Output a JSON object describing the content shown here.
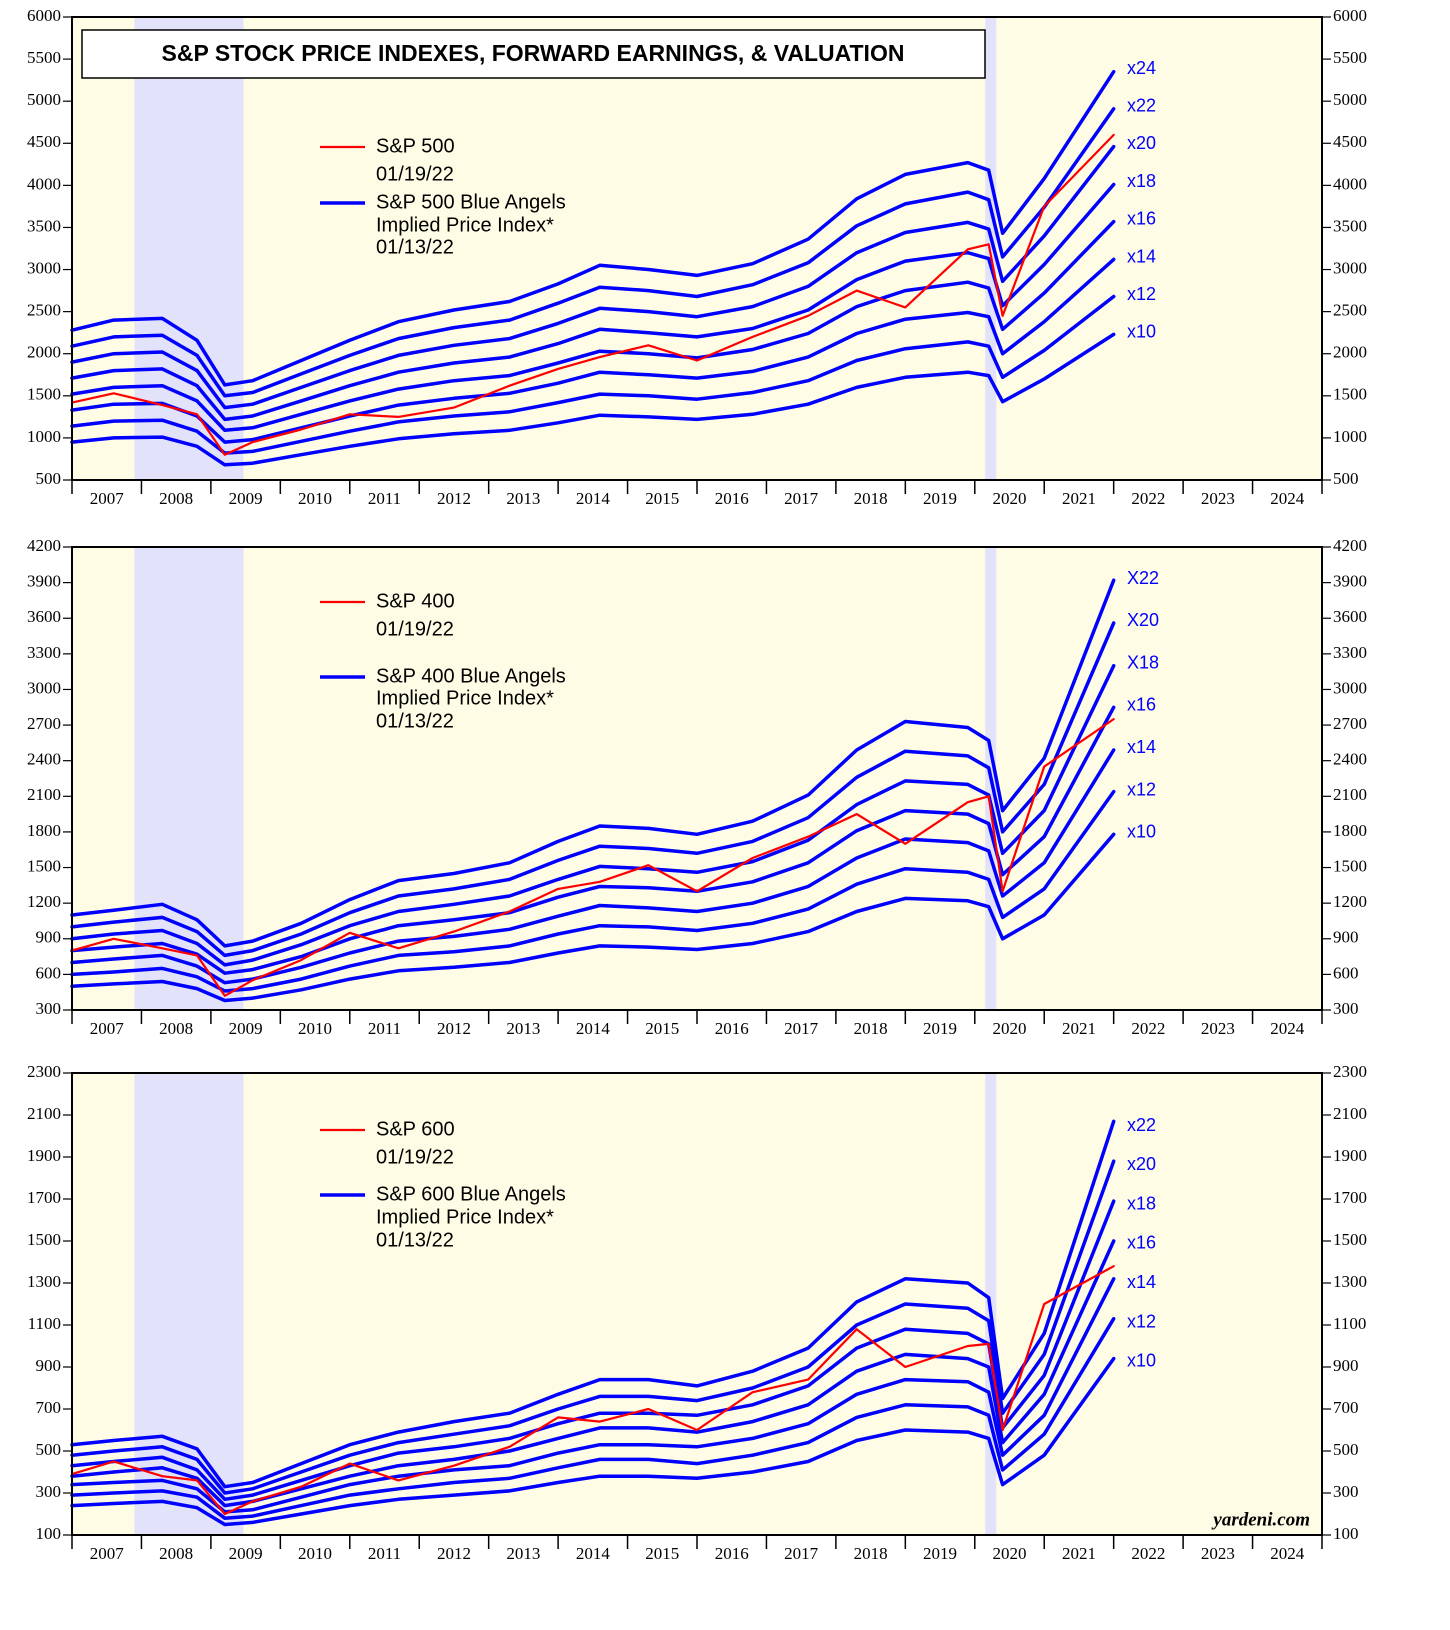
{
  "chart_data": [
    {
      "type": "line",
      "title": "S&P STOCK PRICE INDEXES, FORWARD EARNINGS, & VALUATION",
      "x": [
        2007.0,
        2007.6,
        2008.3,
        2008.8,
        2009.2,
        2009.6,
        2010.3,
        2011.0,
        2011.7,
        2012.5,
        2013.3,
        2014.0,
        2014.6,
        2015.3,
        2016.0,
        2016.8,
        2017.6,
        2018.3,
        2019.0,
        2019.9,
        2020.2,
        2020.4,
        2021.0,
        2022.0
      ],
      "series": [
        {
          "name": "x24",
          "color": "#0000ff",
          "values": [
            2280,
            2400,
            2420,
            2160,
            1630,
            1680,
            1920,
            2160,
            2380,
            2520,
            2620,
            2830,
            3050,
            3000,
            2930,
            3070,
            3360,
            3840,
            4130,
            4270,
            4180,
            3430,
            4080,
            5350
          ]
        },
        {
          "name": "x22",
          "color": "#0000ff",
          "values": [
            2090,
            2200,
            2220,
            1980,
            1500,
            1540,
            1760,
            1980,
            2180,
            2310,
            2400,
            2600,
            2790,
            2750,
            2680,
            2820,
            3080,
            3520,
            3780,
            3920,
            3830,
            3150,
            3740,
            4910
          ]
        },
        {
          "name": "x20",
          "color": "#0000ff",
          "values": [
            1900,
            2000,
            2020,
            1800,
            1360,
            1400,
            1600,
            1800,
            1980,
            2100,
            2180,
            2360,
            2540,
            2500,
            2440,
            2560,
            2800,
            3200,
            3440,
            3560,
            3480,
            2860,
            3400,
            4460
          ]
        },
        {
          "name": "x18",
          "color": "#0000ff",
          "values": [
            1710,
            1800,
            1820,
            1620,
            1220,
            1260,
            1440,
            1620,
            1780,
            1890,
            1960,
            2120,
            2290,
            2250,
            2200,
            2300,
            2520,
            2880,
            3100,
            3200,
            3130,
            2570,
            3060,
            4010
          ]
        },
        {
          "name": "x16",
          "color": "#0000ff",
          "values": [
            1520,
            1600,
            1620,
            1440,
            1090,
            1120,
            1280,
            1440,
            1580,
            1680,
            1740,
            1890,
            2030,
            2000,
            1950,
            2050,
            2240,
            2560,
            2750,
            2850,
            2780,
            2290,
            2720,
            3570
          ]
        },
        {
          "name": "x14",
          "color": "#0000ff",
          "values": [
            1330,
            1400,
            1410,
            1260,
            950,
            980,
            1120,
            1260,
            1390,
            1470,
            1530,
            1650,
            1780,
            1750,
            1710,
            1790,
            1960,
            2240,
            2410,
            2490,
            2440,
            2000,
            2380,
            3120
          ]
        },
        {
          "name": "x12",
          "color": "#0000ff",
          "values": [
            1140,
            1200,
            1210,
            1080,
            820,
            840,
            960,
            1080,
            1190,
            1260,
            1310,
            1420,
            1520,
            1500,
            1460,
            1540,
            1680,
            1920,
            2060,
            2140,
            2090,
            1720,
            2040,
            2680
          ]
        },
        {
          "name": "x10",
          "color": "#0000ff",
          "values": [
            950,
            1000,
            1010,
            900,
            680,
            700,
            800,
            900,
            990,
            1050,
            1090,
            1180,
            1270,
            1250,
            1220,
            1280,
            1400,
            1600,
            1720,
            1780,
            1740,
            1430,
            1700,
            2230
          ]
        },
        {
          "name": "S&P 500",
          "date": "01/19/22",
          "color": "#ff0000",
          "values": [
            1420,
            1530,
            1390,
            1280,
            800,
            950,
            1100,
            1280,
            1250,
            1360,
            1620,
            1820,
            1960,
            2100,
            1920,
            2200,
            2450,
            2750,
            2550,
            3240,
            3300,
            2450,
            3750,
            4600
          ]
        }
      ],
      "band_label": [
        "S&P 500 Blue Angels",
        "Implied Price Index*"
      ],
      "band_date": "01/13/22",
      "band_color": "#0000ff",
      "xlim": [
        2007,
        2025
      ],
      "xticks": [
        2007,
        2008,
        2009,
        2010,
        2011,
        2012,
        2013,
        2014,
        2015,
        2016,
        2017,
        2018,
        2019,
        2020,
        2021,
        2022,
        2023,
        2024,
        2025
      ],
      "year_labels": [
        "2007",
        "2008",
        "2009",
        "2010",
        "2011",
        "2012",
        "2013",
        "2014",
        "2015",
        "2016",
        "2017",
        "2018",
        "2019",
        "2020",
        "2021",
        "2022",
        "2023",
        "2024"
      ],
      "ylim": [
        500,
        6000
      ],
      "yticks": [
        500,
        1000,
        1500,
        2000,
        2500,
        3000,
        3500,
        4000,
        4500,
        5000,
        5500,
        6000
      ],
      "recessions": [
        [
          2007.9,
          2009.47
        ],
        [
          2020.15,
          2020.31
        ]
      ],
      "background": "#fffce6",
      "recession_color": "#e2e2fa"
    },
    {
      "type": "line",
      "x": [
        2007.0,
        2007.6,
        2008.3,
        2008.8,
        2009.2,
        2009.6,
        2010.3,
        2011.0,
        2011.7,
        2012.5,
        2013.3,
        2014.0,
        2014.6,
        2015.3,
        2016.0,
        2016.8,
        2017.6,
        2018.3,
        2019.0,
        2019.9,
        2020.2,
        2020.4,
        2021.0,
        2022.0
      ],
      "series": [
        {
          "name": "X22",
          "color": "#0000ff",
          "values": [
            1100,
            1140,
            1190,
            1060,
            840,
            880,
            1030,
            1230,
            1390,
            1450,
            1540,
            1720,
            1850,
            1830,
            1780,
            1890,
            2110,
            2490,
            2730,
            2680,
            2570,
            1980,
            2420,
            3920
          ]
        },
        {
          "name": "X20",
          "color": "#0000ff",
          "values": [
            1000,
            1040,
            1080,
            960,
            760,
            800,
            940,
            1120,
            1260,
            1320,
            1400,
            1560,
            1680,
            1660,
            1620,
            1720,
            1920,
            2260,
            2480,
            2440,
            2340,
            1800,
            2200,
            3560
          ]
        },
        {
          "name": "X18",
          "color": "#0000ff",
          "values": [
            900,
            940,
            970,
            860,
            680,
            720,
            850,
            1010,
            1130,
            1190,
            1260,
            1400,
            1510,
            1490,
            1460,
            1550,
            1730,
            2030,
            2230,
            2200,
            2110,
            1620,
            1980,
            3200
          ]
        },
        {
          "name": "x16",
          "color": "#0000ff",
          "values": [
            800,
            830,
            860,
            770,
            610,
            640,
            750,
            900,
            1010,
            1060,
            1120,
            1250,
            1340,
            1330,
            1300,
            1380,
            1540,
            1810,
            1980,
            1950,
            1870,
            1440,
            1760,
            2850
          ]
        },
        {
          "name": "x14",
          "color": "#0000ff",
          "values": [
            700,
            730,
            760,
            670,
            530,
            560,
            660,
            780,
            880,
            920,
            980,
            1090,
            1180,
            1160,
            1130,
            1200,
            1340,
            1580,
            1740,
            1710,
            1640,
            1260,
            1540,
            2490
          ]
        },
        {
          "name": "x12",
          "color": "#0000ff",
          "values": [
            600,
            620,
            650,
            580,
            460,
            480,
            560,
            670,
            760,
            790,
            840,
            940,
            1010,
            1000,
            970,
            1030,
            1150,
            1360,
            1490,
            1460,
            1400,
            1080,
            1320,
            2140
          ]
        },
        {
          "name": "x10",
          "color": "#0000ff",
          "values": [
            500,
            520,
            540,
            480,
            380,
            400,
            470,
            560,
            630,
            660,
            700,
            780,
            840,
            830,
            810,
            860,
            960,
            1130,
            1240,
            1220,
            1170,
            900,
            1100,
            1780
          ]
        },
        {
          "name": "S&P 400",
          "date": "01/19/22",
          "color": "#ff0000",
          "values": [
            800,
            900,
            820,
            760,
            420,
            550,
            720,
            950,
            820,
            960,
            1130,
            1320,
            1380,
            1520,
            1300,
            1580,
            1760,
            1950,
            1700,
            2050,
            2100,
            1300,
            2350,
            2750
          ]
        }
      ],
      "band_label": [
        "S&P 400 Blue Angels",
        "Implied Price Index*"
      ],
      "band_date": "01/13/22",
      "band_color": "#0000ff",
      "xlim": [
        2007,
        2025
      ],
      "xticks": [
        2007,
        2008,
        2009,
        2010,
        2011,
        2012,
        2013,
        2014,
        2015,
        2016,
        2017,
        2018,
        2019,
        2020,
        2021,
        2022,
        2023,
        2024,
        2025
      ],
      "year_labels": [
        "2007",
        "2008",
        "2009",
        "2010",
        "2011",
        "2012",
        "2013",
        "2014",
        "2015",
        "2016",
        "2017",
        "2018",
        "2019",
        "2020",
        "2021",
        "2022",
        "2023",
        "2024"
      ],
      "ylim": [
        300,
        4200
      ],
      "yticks": [
        300,
        600,
        900,
        1200,
        1500,
        1800,
        2100,
        2400,
        2700,
        3000,
        3300,
        3600,
        3900,
        4200
      ],
      "recessions": [
        [
          2007.9,
          2009.47
        ],
        [
          2020.15,
          2020.31
        ]
      ],
      "background": "#fffce6",
      "recession_color": "#e2e2fa"
    },
    {
      "type": "line",
      "x": [
        2007.0,
        2007.6,
        2008.3,
        2008.8,
        2009.2,
        2009.6,
        2010.3,
        2011.0,
        2011.7,
        2012.5,
        2013.3,
        2014.0,
        2014.6,
        2015.3,
        2016.0,
        2016.8,
        2017.6,
        2018.3,
        2019.0,
        2019.9,
        2020.2,
        2020.4,
        2021.0,
        2022.0
      ],
      "series": [
        {
          "name": "x22",
          "color": "#0000ff",
          "values": [
            530,
            550,
            570,
            510,
            330,
            350,
            440,
            530,
            590,
            640,
            680,
            770,
            840,
            840,
            810,
            880,
            990,
            1210,
            1320,
            1300,
            1230,
            750,
            1060,
            2070
          ]
        },
        {
          "name": "x20",
          "color": "#0000ff",
          "values": [
            480,
            500,
            520,
            460,
            300,
            320,
            400,
            480,
            540,
            580,
            620,
            700,
            760,
            760,
            740,
            800,
            900,
            1100,
            1200,
            1180,
            1120,
            680,
            960,
            1880
          ]
        },
        {
          "name": "x18",
          "color": "#0000ff",
          "values": [
            430,
            450,
            470,
            410,
            270,
            290,
            360,
            430,
            490,
            520,
            560,
            630,
            680,
            680,
            670,
            720,
            810,
            990,
            1080,
            1060,
            1010,
            610,
            860,
            1690
          ]
        },
        {
          "name": "x16",
          "color": "#0000ff",
          "values": [
            380,
            400,
            420,
            370,
            240,
            260,
            320,
            380,
            430,
            460,
            500,
            560,
            610,
            610,
            590,
            640,
            720,
            880,
            960,
            940,
            900,
            540,
            770,
            1500
          ]
        },
        {
          "name": "x14",
          "color": "#0000ff",
          "values": [
            340,
            350,
            360,
            320,
            210,
            220,
            280,
            340,
            380,
            410,
            430,
            490,
            530,
            530,
            520,
            560,
            630,
            770,
            840,
            830,
            780,
            480,
            670,
            1320
          ]
        },
        {
          "name": "x12",
          "color": "#0000ff",
          "values": [
            290,
            300,
            310,
            280,
            180,
            190,
            240,
            290,
            320,
            350,
            370,
            420,
            460,
            460,
            440,
            480,
            540,
            660,
            720,
            710,
            670,
            410,
            580,
            1130
          ]
        },
        {
          "name": "x10",
          "color": "#0000ff",
          "values": [
            240,
            250,
            260,
            230,
            150,
            160,
            200,
            240,
            270,
            290,
            310,
            350,
            380,
            380,
            370,
            400,
            450,
            550,
            600,
            590,
            560,
            340,
            480,
            940
          ]
        },
        {
          "name": "S&P 600",
          "date": "01/19/22",
          "color": "#ff0000",
          "values": [
            390,
            450,
            380,
            360,
            200,
            260,
            330,
            440,
            360,
            430,
            520,
            660,
            640,
            700,
            600,
            780,
            840,
            1080,
            900,
            1000,
            1010,
            600,
            1200,
            1380
          ]
        }
      ],
      "band_label": [
        "S&P 600 Blue Angels",
        "Implied Price Index*"
      ],
      "band_date": "01/13/22",
      "band_color": "#0000ff",
      "xlim": [
        2007,
        2025
      ],
      "xticks": [
        2007,
        2008,
        2009,
        2010,
        2011,
        2012,
        2013,
        2014,
        2015,
        2016,
        2017,
        2018,
        2019,
        2020,
        2021,
        2022,
        2023,
        2024,
        2025
      ],
      "year_labels": [
        "2007",
        "2008",
        "2009",
        "2010",
        "2011",
        "2012",
        "2013",
        "2014",
        "2015",
        "2016",
        "2017",
        "2018",
        "2019",
        "2020",
        "2021",
        "2022",
        "2023",
        "2024"
      ],
      "ylim": [
        100,
        2300
      ],
      "yticks": [
        100,
        300,
        500,
        700,
        900,
        1100,
        1300,
        1500,
        1700,
        1900,
        2100,
        2300
      ],
      "recessions": [
        [
          2007.9,
          2009.47
        ],
        [
          2020.15,
          2020.31
        ]
      ],
      "background": "#fffce6",
      "recession_color": "#e2e2fa",
      "watermark": "yardeni.com"
    }
  ]
}
